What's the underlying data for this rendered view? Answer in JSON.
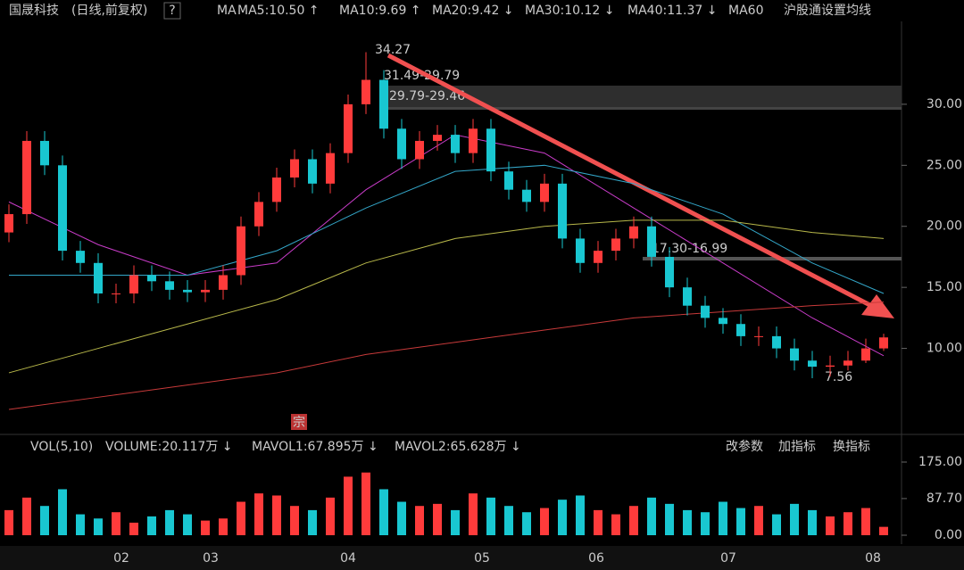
{
  "header": {
    "stock": "国晟科技",
    "mode": "(日线,前复权)",
    "help": "?",
    "ma": "MA",
    "ma_values": [
      {
        "text": "MA5:10.50 ↑",
        "color": "#e0e0e0"
      },
      {
        "text": "MA10:9.69 ↑",
        "color": "#d4c11a"
      },
      {
        "text": "MA20:9.42 ↓",
        "color": "#c83cc8"
      },
      {
        "text": "MA30:10.12 ↓",
        "color": "#2ec02e"
      },
      {
        "text": "MA40:11.37 ↓",
        "color": "#d0d0d0"
      },
      {
        "text": "MA60",
        "color": "#33a6c8"
      }
    ],
    "connect": "沪股通",
    "settings": "设置均线"
  },
  "chart_data": {
    "type": "candlestick",
    "ylim": [
      3.1,
      36.35
    ],
    "yticks": [
      {
        "value": 10,
        "label": "10.00"
      },
      {
        "value": 15,
        "label": "15.00"
      },
      {
        "value": 20,
        "label": "20.00"
      },
      {
        "value": 25,
        "label": "25.00"
      },
      {
        "value": 30,
        "label": "30.00"
      }
    ],
    "months": [
      "02",
      "03",
      "04",
      "05",
      "06",
      "07",
      "08"
    ],
    "up_color": "#ff3b3b",
    "down_color": "#19c7d1",
    "open": [
      19.5,
      21,
      27,
      25,
      18,
      17,
      14.5,
      14.5,
      16,
      15.5,
      14.8,
      14.6,
      14.8,
      16,
      20,
      22,
      24,
      25.5,
      23.5,
      26,
      30,
      32,
      28,
      25.5,
      27,
      27.5,
      26,
      28,
      24.5,
      23,
      22,
      23.5,
      19,
      17,
      18,
      19,
      20,
      17.5,
      15,
      13.5,
      12.5,
      12,
      11,
      11,
      10,
      9,
      8.5,
      8.6,
      9,
      10
    ],
    "high": [
      21.8,
      27.8,
      27.8,
      25.8,
      18.8,
      17.8,
      15.3,
      16.8,
      16.8,
      16.3,
      15.6,
      15.6,
      16.8,
      20.8,
      22.8,
      24.8,
      26.3,
      26.3,
      26.8,
      30.8,
      34.27,
      32.8,
      28.8,
      27.8,
      28.3,
      28.3,
      28.8,
      28.8,
      25.3,
      23.8,
      24.3,
      24.3,
      19.8,
      18.8,
      19.8,
      20.8,
      20.8,
      18.3,
      15.8,
      14.3,
      13.3,
      12.8,
      11.8,
      11.8,
      10.8,
      9.8,
      9.4,
      9.8,
      10.8,
      11.2
    ],
    "low": [
      18.7,
      20.2,
      24.2,
      17.2,
      16.2,
      13.7,
      13.7,
      13.7,
      14.7,
      14.0,
      13.8,
      13.8,
      14.0,
      15.2,
      19.2,
      21.2,
      23.2,
      22.7,
      22.7,
      25.2,
      29.2,
      27.2,
      24.7,
      24.7,
      26.2,
      25.2,
      25.2,
      23.7,
      22.2,
      21.2,
      21.2,
      18.2,
      16.2,
      16.2,
      17.2,
      18.2,
      16.7,
      14.2,
      12.7,
      11.7,
      11.2,
      10.2,
      10.2,
      9.2,
      8.2,
      7.56,
      7.7,
      8.2,
      8.8,
      9.8
    ],
    "close": [
      21,
      27,
      25,
      18,
      17,
      14.5,
      14.5,
      16,
      15.5,
      14.8,
      14.6,
      14.8,
      16,
      20,
      22,
      24,
      25.5,
      23.5,
      26,
      30,
      32,
      28,
      25.5,
      27,
      27.5,
      26,
      28,
      24.5,
      23,
      22,
      23.5,
      19,
      17,
      18,
      19,
      20,
      17.5,
      15,
      13.5,
      12.5,
      12,
      11,
      11,
      10,
      9,
      8.5,
      8.6,
      9,
      10,
      10.9
    ],
    "ma_lines": [
      {
        "color": "#c83cc8",
        "x": [
          0,
          5,
          10,
          15,
          20,
          25,
          30,
          35,
          40,
          45,
          49
        ],
        "values": [
          22,
          18.5,
          16,
          17,
          23,
          27.5,
          26,
          21.5,
          17,
          12.5,
          9.4
        ]
      },
      {
        "color": "#33a6c8",
        "x": [
          0,
          5,
          10,
          15,
          20,
          25,
          30,
          35,
          40,
          45,
          49
        ],
        "values": [
          16,
          16,
          16,
          18,
          21.5,
          24.5,
          25,
          23.5,
          21,
          17,
          14.5
        ]
      },
      {
        "color": "#b8b84a",
        "x": [
          0,
          5,
          10,
          15,
          20,
          25,
          30,
          35,
          40,
          45,
          49
        ],
        "values": [
          8,
          10,
          12,
          14,
          17,
          19,
          20,
          20.5,
          20.5,
          19.5,
          19
        ]
      },
      {
        "color": "#c83a3a",
        "x": [
          0,
          5,
          10,
          15,
          20,
          25,
          30,
          35,
          40,
          45,
          49
        ],
        "values": [
          5,
          6,
          7,
          8,
          9.5,
          10.5,
          11.5,
          12.5,
          13,
          13.5,
          13.8
        ]
      }
    ],
    "annotations": {
      "high": "34.27",
      "band1": "31.49-29.79",
      "band2": "29.79-29.46",
      "band3": "17.30-16.99",
      "low": "7.56",
      "tag": "宗"
    }
  },
  "volume_chart": {
    "type": "bar",
    "header": {
      "vol": "VOL(5,10)",
      "volume": "VOLUME:20.117万 ↓",
      "mavol1": "MAVOL1:67.895万 ↓",
      "mavol2": "MAVOL2:65.628万 ↓"
    },
    "buttons": [
      "改参数",
      "加指标",
      "换指标"
    ],
    "ylim": [
      0,
      175
    ],
    "yticks": [
      {
        "value": 0,
        "label": "0.00"
      },
      {
        "value": 87.7,
        "label": "87.70"
      },
      {
        "value": 175,
        "label": "175.00"
      }
    ],
    "values": [
      60,
      90,
      70,
      110,
      50,
      40,
      55,
      30,
      45,
      60,
      50,
      35,
      40,
      80,
      100,
      95,
      70,
      60,
      90,
      140,
      150,
      110,
      80,
      70,
      75,
      60,
      100,
      90,
      70,
      55,
      65,
      85,
      95,
      60,
      50,
      70,
      90,
      75,
      60,
      55,
      80,
      65,
      70,
      50,
      75,
      60,
      45,
      55,
      65,
      20
    ]
  }
}
